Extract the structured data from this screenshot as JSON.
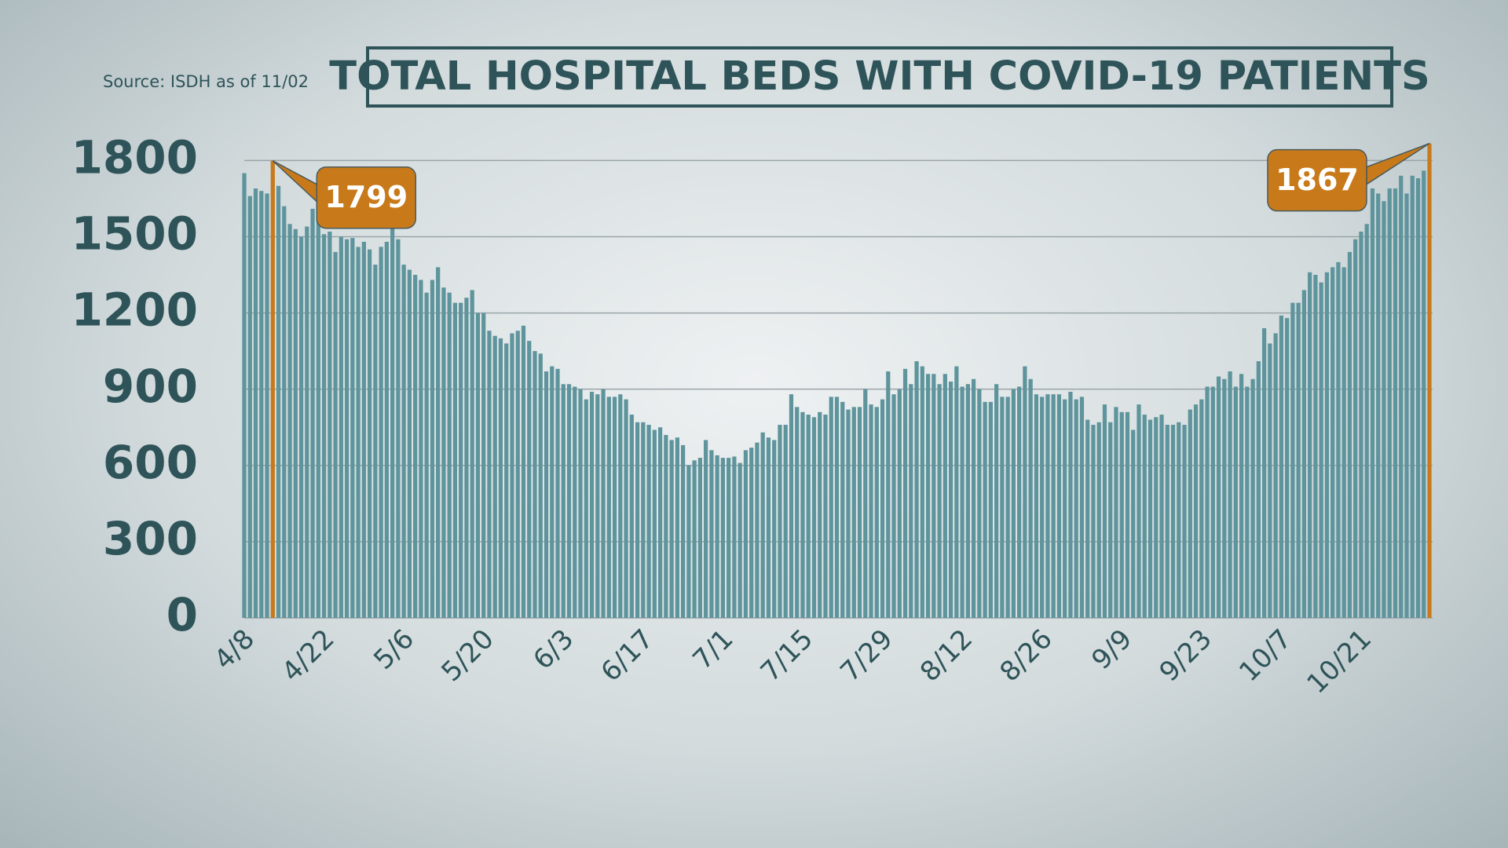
{
  "chart_data": {
    "type": "bar",
    "title": "TOTAL HOSPITAL BEDS WITH COVID-19 PATIENTS",
    "source": "Source: ISDH as of 11/02",
    "categories": [
      "4/8",
      null,
      null,
      null,
      null,
      null,
      null,
      null,
      null,
      null,
      null,
      null,
      null,
      null,
      "4/22",
      null,
      null,
      null,
      null,
      null,
      null,
      null,
      null,
      null,
      null,
      null,
      null,
      null,
      "5/6",
      null,
      null,
      null,
      null,
      null,
      null,
      null,
      null,
      null,
      null,
      null,
      null,
      null,
      "5/20",
      null,
      null,
      null,
      null,
      null,
      null,
      null,
      null,
      null,
      null,
      null,
      null,
      null,
      "6/3",
      null,
      null,
      null,
      null,
      null,
      null,
      null,
      null,
      null,
      null,
      null,
      null,
      null,
      "6/17",
      null,
      null,
      null,
      null,
      null,
      null,
      null,
      null,
      null,
      null,
      null,
      null,
      null,
      "7/1",
      null,
      null,
      null,
      null,
      null,
      null,
      null,
      null,
      null,
      null,
      null,
      null,
      null,
      "7/15",
      null,
      null,
      null,
      null,
      null,
      null,
      null,
      null,
      null,
      null,
      null,
      null,
      null,
      "7/29",
      null,
      null,
      null,
      null,
      null,
      null,
      null,
      null,
      null,
      null,
      null,
      null,
      null,
      "8/12",
      null,
      null,
      null,
      null,
      null,
      null,
      null,
      null,
      null,
      null,
      null,
      null,
      null,
      "8/26",
      null,
      null,
      null,
      null,
      null,
      null,
      null,
      null,
      null,
      null,
      null,
      null,
      null,
      "9/9",
      null,
      null,
      null,
      null,
      null,
      null,
      null,
      null,
      null,
      null,
      null,
      null,
      null,
      "9/23",
      null,
      null,
      null,
      null,
      null,
      null,
      null,
      null,
      null,
      null,
      null,
      null,
      null,
      "10/7",
      null,
      null,
      null,
      null,
      null,
      null,
      null,
      null,
      null,
      null,
      null,
      null,
      null,
      "10/21",
      null,
      null,
      null,
      null,
      null,
      null,
      null,
      null,
      null,
      null,
      null,
      null
    ],
    "values": [
      1750,
      1660,
      1690,
      1680,
      1670,
      1799,
      1700,
      1620,
      1550,
      1530,
      1500,
      1540,
      1610,
      1605,
      1510,
      1520,
      1440,
      1500,
      1490,
      1495,
      1460,
      1480,
      1450,
      1390,
      1460,
      1480,
      1570,
      1490,
      1390,
      1370,
      1350,
      1330,
      1280,
      1330,
      1380,
      1300,
      1280,
      1240,
      1240,
      1260,
      1290,
      1200,
      1200,
      1130,
      1110,
      1100,
      1080,
      1120,
      1130,
      1150,
      1090,
      1050,
      1040,
      970,
      990,
      980,
      920,
      920,
      910,
      900,
      860,
      890,
      880,
      900,
      870,
      870,
      880,
      860,
      800,
      770,
      770,
      760,
      740,
      750,
      720,
      700,
      710,
      680,
      600,
      620,
      630,
      700,
      660,
      640,
      630,
      630,
      635,
      610,
      660,
      670,
      690,
      730,
      710,
      700,
      760,
      760,
      880,
      830,
      810,
      800,
      790,
      810,
      800,
      870,
      870,
      850,
      820,
      830,
      830,
      900,
      840,
      830,
      860,
      970,
      880,
      900,
      980,
      920,
      1010,
      990,
      960,
      960,
      920,
      960,
      930,
      990,
      910,
      920,
      940,
      900,
      850,
      850,
      920,
      870,
      870,
      900,
      910,
      990,
      940,
      880,
      870,
      880,
      880,
      880,
      860,
      890,
      860,
      870,
      780,
      760,
      770,
      840,
      770,
      830,
      810,
      810,
      740,
      840,
      800,
      780,
      790,
      800,
      760,
      760,
      770,
      760,
      820,
      840,
      860,
      910,
      910,
      950,
      940,
      970,
      910,
      960,
      910,
      940,
      1010,
      1140,
      1080,
      1120,
      1190,
      1180,
      1240,
      1240,
      1290,
      1360,
      1350,
      1320,
      1360,
      1380,
      1400,
      1380,
      1440,
      1490,
      1520,
      1550,
      1690,
      1670,
      1640,
      1690,
      1690,
      1740,
      1670,
      1740,
      1730,
      1760,
      1867
    ],
    "color": "#5e949c",
    "highlight_indices": [
      5,
      208
    ],
    "highlight_color": "#c87a1a",
    "ylim": [
      0,
      1900
    ],
    "yticks": [
      0,
      300,
      600,
      900,
      1200,
      1500,
      1800
    ],
    "grid": true
  }
}
